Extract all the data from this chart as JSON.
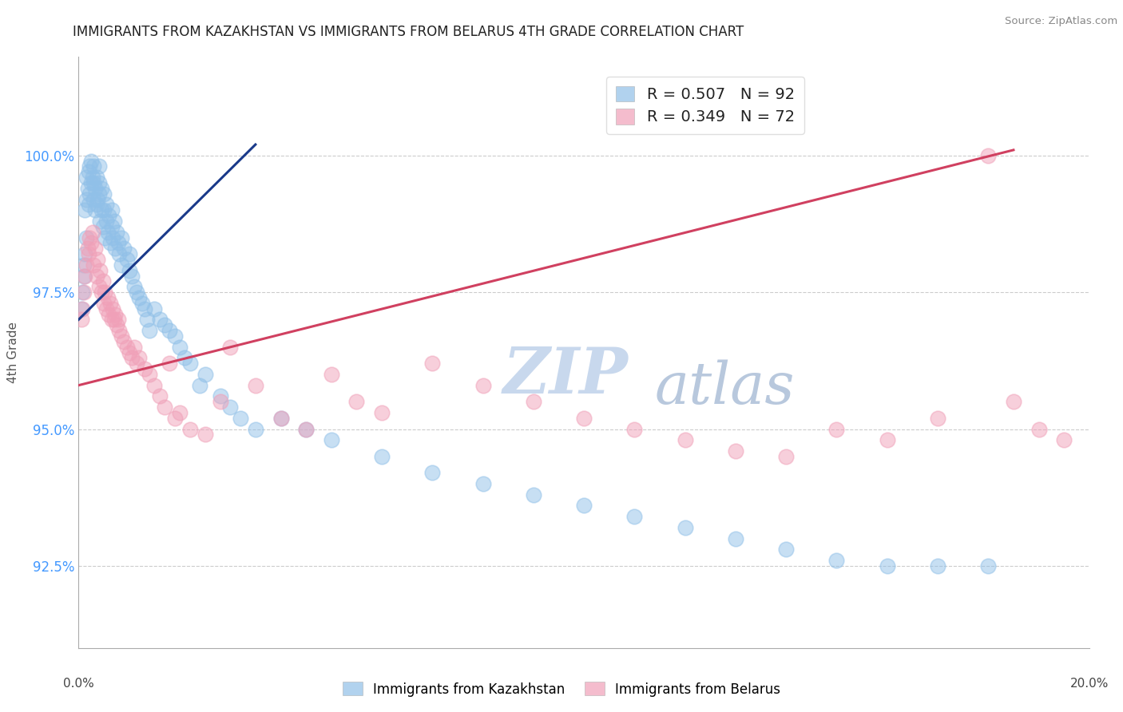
{
  "title": "IMMIGRANTS FROM KAZAKHSTAN VS IMMIGRANTS FROM BELARUS 4TH GRADE CORRELATION CHART",
  "source": "Source: ZipAtlas.com",
  "ylabel": "4th Grade",
  "xlim": [
    0.0,
    20.0
  ],
  "ylim": [
    91.0,
    101.8
  ],
  "yticks": [
    92.5,
    95.0,
    97.5,
    100.0
  ],
  "ytick_labels": [
    "92.5%",
    "95.0%",
    "97.5%",
    "100.0%"
  ],
  "kazakhstan": {
    "R": 0.507,
    "N": 92,
    "color": "#90c0e8",
    "line_color": "#1a3a8a",
    "x": [
      0.05,
      0.08,
      0.1,
      0.1,
      0.12,
      0.12,
      0.15,
      0.15,
      0.15,
      0.18,
      0.2,
      0.2,
      0.22,
      0.22,
      0.25,
      0.25,
      0.28,
      0.3,
      0.3,
      0.3,
      0.32,
      0.32,
      0.35,
      0.35,
      0.38,
      0.4,
      0.4,
      0.4,
      0.42,
      0.45,
      0.45,
      0.48,
      0.5,
      0.5,
      0.52,
      0.55,
      0.55,
      0.58,
      0.6,
      0.62,
      0.65,
      0.65,
      0.68,
      0.7,
      0.72,
      0.75,
      0.78,
      0.8,
      0.85,
      0.85,
      0.9,
      0.95,
      1.0,
      1.0,
      1.05,
      1.1,
      1.15,
      1.2,
      1.25,
      1.3,
      1.35,
      1.4,
      1.5,
      1.6,
      1.7,
      1.8,
      1.9,
      2.0,
      2.1,
      2.2,
      2.4,
      2.5,
      2.8,
      3.0,
      3.2,
      3.5,
      4.0,
      4.5,
      5.0,
      6.0,
      7.0,
      8.0,
      9.0,
      10.0,
      11.0,
      12.0,
      13.0,
      14.0,
      15.0,
      16.0,
      17.0,
      18.0
    ],
    "y": [
      97.2,
      97.5,
      97.8,
      98.0,
      98.2,
      99.0,
      98.5,
      99.2,
      99.6,
      99.4,
      99.1,
      99.7,
      99.3,
      99.8,
      99.5,
      99.9,
      99.6,
      99.2,
      99.5,
      99.8,
      99.0,
      99.4,
      99.1,
      99.6,
      99.2,
      99.3,
      99.5,
      99.8,
      98.8,
      99.0,
      99.4,
      98.7,
      99.0,
      99.3,
      98.5,
      98.8,
      99.1,
      98.6,
      98.9,
      98.4,
      98.7,
      99.0,
      98.5,
      98.8,
      98.3,
      98.6,
      98.4,
      98.2,
      98.0,
      98.5,
      98.3,
      98.1,
      97.9,
      98.2,
      97.8,
      97.6,
      97.5,
      97.4,
      97.3,
      97.2,
      97.0,
      96.8,
      97.2,
      97.0,
      96.9,
      96.8,
      96.7,
      96.5,
      96.3,
      96.2,
      95.8,
      96.0,
      95.6,
      95.4,
      95.2,
      95.0,
      95.2,
      95.0,
      94.8,
      94.5,
      94.2,
      94.0,
      93.8,
      93.6,
      93.4,
      93.2,
      93.0,
      92.8,
      92.6,
      92.5,
      92.5,
      92.5
    ]
  },
  "belarus": {
    "R": 0.349,
    "N": 72,
    "color": "#f0a0b8",
    "line_color": "#d04060",
    "x": [
      0.05,
      0.08,
      0.1,
      0.12,
      0.15,
      0.18,
      0.2,
      0.22,
      0.25,
      0.28,
      0.3,
      0.32,
      0.35,
      0.38,
      0.4,
      0.42,
      0.45,
      0.48,
      0.5,
      0.52,
      0.55,
      0.58,
      0.6,
      0.62,
      0.65,
      0.68,
      0.7,
      0.72,
      0.75,
      0.78,
      0.8,
      0.85,
      0.9,
      0.95,
      1.0,
      1.05,
      1.1,
      1.15,
      1.2,
      1.3,
      1.4,
      1.5,
      1.6,
      1.7,
      1.8,
      1.9,
      2.0,
      2.2,
      2.5,
      2.8,
      3.0,
      3.5,
      4.0,
      4.5,
      5.0,
      5.5,
      6.0,
      7.0,
      8.0,
      9.0,
      10.0,
      11.0,
      12.0,
      13.0,
      14.0,
      15.0,
      16.0,
      17.0,
      18.0,
      18.5,
      19.0,
      19.5
    ],
    "y": [
      97.0,
      97.2,
      97.5,
      97.8,
      98.0,
      98.3,
      98.2,
      98.5,
      98.4,
      98.6,
      98.0,
      98.3,
      97.8,
      98.1,
      97.6,
      97.9,
      97.5,
      97.7,
      97.3,
      97.5,
      97.2,
      97.4,
      97.1,
      97.3,
      97.0,
      97.2,
      97.0,
      97.1,
      96.9,
      97.0,
      96.8,
      96.7,
      96.6,
      96.5,
      96.4,
      96.3,
      96.5,
      96.2,
      96.3,
      96.1,
      96.0,
      95.8,
      95.6,
      95.4,
      96.2,
      95.2,
      95.3,
      95.0,
      94.9,
      95.5,
      96.5,
      95.8,
      95.2,
      95.0,
      96.0,
      95.5,
      95.3,
      96.2,
      95.8,
      95.5,
      95.2,
      95.0,
      94.8,
      94.6,
      94.5,
      95.0,
      94.8,
      95.2,
      100.0,
      95.5,
      95.0,
      94.8
    ]
  },
  "watermark_top": "ZIP",
  "watermark_bottom": "atlas",
  "watermark_color_zip": "#c8d8ed",
  "watermark_color_atlas": "#b8c8dd",
  "background_color": "#ffffff",
  "grid_color": "#cccccc"
}
